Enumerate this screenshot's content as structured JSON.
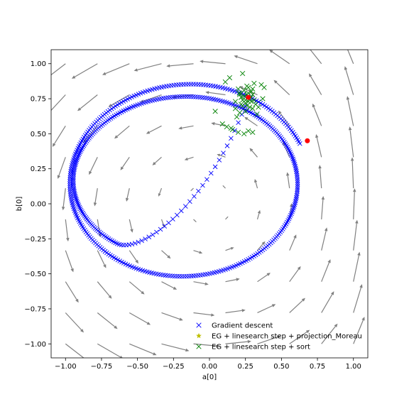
{
  "chart_data": {
    "type": "scatter",
    "title": "",
    "xlabel": "a[0]",
    "ylabel": "b[0]",
    "xlim": [
      -1.1,
      1.1
    ],
    "ylim": [
      -1.1,
      1.1
    ],
    "xticks": [
      -1.0,
      -0.75,
      -0.5,
      -0.25,
      0.0,
      0.25,
      0.5,
      0.75,
      1.0
    ],
    "yticks": [
      -1.0,
      -0.75,
      -0.5,
      -0.25,
      0.0,
      0.25,
      0.5,
      0.75,
      1.0
    ],
    "xtick_labels": [
      "−1.00",
      "−0.75",
      "−0.50",
      "−0.25",
      "0.00",
      "0.25",
      "0.50",
      "0.75",
      "1.00"
    ],
    "ytick_labels": [
      "−1.00",
      "−0.75",
      "−0.50",
      "−0.25",
      "0.00",
      "0.25",
      "0.50",
      "0.75",
      "1.00"
    ],
    "grid": false,
    "legend_position": "lower-right",
    "vector_field": {
      "color": "#808080",
      "x": [
        -1.0,
        -0.778,
        -0.556,
        -0.333,
        -0.111,
        0.111,
        0.333,
        0.556,
        0.778,
        1.0
      ],
      "y": [
        -1.0,
        -0.778,
        -0.556,
        -0.333,
        -0.111,
        0.111,
        0.333,
        0.556,
        0.778,
        1.0
      ]
    },
    "series": [
      {
        "name": "Gradient descent",
        "marker": "x",
        "color": "#0000ff",
        "start": [
          0.68,
          0.45
        ],
        "spiral": {
          "center_start": [
            -0.14,
            0.13
          ],
          "center_end": [
            -0.2,
            0.17
          ],
          "radius_a_start": 0.84,
          "radius_a_end": 0.74,
          "radius_b_start": 0.74,
          "radius_b_end": 0.55,
          "turns": 1.7,
          "point_count": 520
        },
        "end": [
          0.27,
          0.76
        ]
      },
      {
        "name": "EG + linesearch step + projection_Moreau",
        "marker": "*",
        "color": "#bfbf00",
        "x": [
          0.27
        ],
        "y": [
          0.76
        ]
      },
      {
        "name": "EG + linesearch step + sort",
        "marker": "x",
        "color": "#008000",
        "x": [
          0.11,
          0.14,
          0.09,
          0.16,
          0.2,
          0.24,
          0.21,
          0.23,
          0.31,
          0.3,
          0.36,
          0.37,
          0.33,
          0.38,
          0.34,
          0.3,
          0.25,
          0.21,
          0.18,
          0.2,
          0.23,
          0.26,
          0.29,
          0.31,
          0.28,
          0.25,
          0.22,
          0.24,
          0.27,
          0.3,
          0.32,
          0.29,
          0.26,
          0.23,
          0.21,
          0.24,
          0.27,
          0.29,
          0.27,
          0.25,
          0.28,
          0.26,
          0.04,
          0.18,
          0.15,
          0.19,
          0.27,
          0.22,
          0.3,
          0.12
        ],
        "y": [
          0.87,
          0.9,
          0.57,
          0.53,
          0.51,
          0.5,
          0.65,
          0.93,
          0.86,
          0.82,
          0.85,
          0.75,
          0.64,
          0.83,
          0.69,
          0.51,
          0.66,
          0.78,
          0.73,
          0.82,
          0.7,
          0.84,
          0.8,
          0.74,
          0.69,
          0.72,
          0.76,
          0.81,
          0.83,
          0.78,
          0.71,
          0.73,
          0.7,
          0.74,
          0.79,
          0.77,
          0.79,
          0.76,
          0.73,
          0.74,
          0.75,
          0.78,
          0.66,
          0.68,
          0.54,
          0.62,
          0.52,
          0.71,
          0.68,
          0.55
        ]
      }
    ],
    "markers": [
      {
        "name": "start",
        "color": "#ff0000",
        "x": 0.68,
        "y": 0.45
      },
      {
        "name": "end",
        "color": "#ff0000",
        "x": 0.27,
        "y": 0.76
      }
    ]
  }
}
